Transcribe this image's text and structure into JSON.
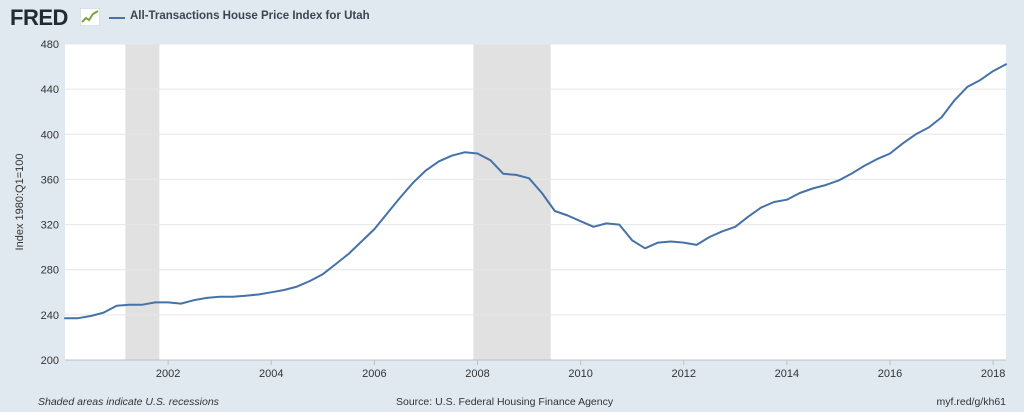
{
  "header": {
    "logo_text": "FRED",
    "logo_icon": "trend-line-icon",
    "legend_label": "All-Transactions House Price Index for Utah",
    "series_color": "#4572a7"
  },
  "chart_data": {
    "type": "line",
    "title": "",
    "xlabel": "",
    "ylabel": "Index 1980:Q1=100",
    "ylim": [
      200,
      480
    ],
    "xlim": [
      2000.0,
      2018.25
    ],
    "y_ticks": [
      200,
      240,
      280,
      320,
      360,
      400,
      440,
      480
    ],
    "x_ticks": [
      2002,
      2004,
      2006,
      2008,
      2010,
      2012,
      2014,
      2016,
      2018
    ],
    "grid": true,
    "legend": "top-left",
    "recessions": [
      {
        "start": 2001.17,
        "end": 2001.83
      },
      {
        "start": 2007.92,
        "end": 2009.42
      }
    ],
    "series": [
      {
        "name": "All-Transactions House Price Index for Utah",
        "color": "#4572a7",
        "x": [
          2000.0,
          2000.25,
          2000.5,
          2000.75,
          2001.0,
          2001.25,
          2001.5,
          2001.75,
          2002.0,
          2002.25,
          2002.5,
          2002.75,
          2003.0,
          2003.25,
          2003.5,
          2003.75,
          2004.0,
          2004.25,
          2004.5,
          2004.75,
          2005.0,
          2005.25,
          2005.5,
          2005.75,
          2006.0,
          2006.25,
          2006.5,
          2006.75,
          2007.0,
          2007.25,
          2007.5,
          2007.75,
          2008.0,
          2008.25,
          2008.5,
          2008.75,
          2009.0,
          2009.25,
          2009.5,
          2009.75,
          2010.0,
          2010.25,
          2010.5,
          2010.75,
          2011.0,
          2011.25,
          2011.5,
          2011.75,
          2012.0,
          2012.25,
          2012.5,
          2012.75,
          2013.0,
          2013.25,
          2013.5,
          2013.75,
          2014.0,
          2014.25,
          2014.5,
          2014.75,
          2015.0,
          2015.25,
          2015.5,
          2015.75,
          2016.0,
          2016.25,
          2016.5,
          2016.75,
          2017.0,
          2017.25,
          2017.5,
          2017.75,
          2018.0,
          2018.25
        ],
        "values": [
          237,
          237,
          239,
          242,
          248,
          249,
          249,
          251,
          251,
          250,
          253,
          255,
          256,
          256,
          257,
          258,
          260,
          262,
          265,
          270,
          276,
          285,
          294,
          305,
          316,
          330,
          344,
          357,
          368,
          376,
          381,
          384,
          383,
          377,
          365,
          364,
          361,
          348,
          332,
          328,
          323,
          318,
          321,
          320,
          306,
          299,
          304,
          305,
          304,
          302,
          309,
          314,
          318,
          327,
          335,
          340,
          342,
          348,
          352,
          355,
          359,
          365,
          372,
          378,
          383,
          392,
          400,
          406,
          415,
          430,
          442,
          448,
          456,
          462
        ]
      }
    ]
  },
  "footer": {
    "note": "Shaded areas indicate U.S. recessions",
    "source": "Source: U.S. Federal Housing Finance Agency",
    "link": "myf.red/g/kh61"
  }
}
